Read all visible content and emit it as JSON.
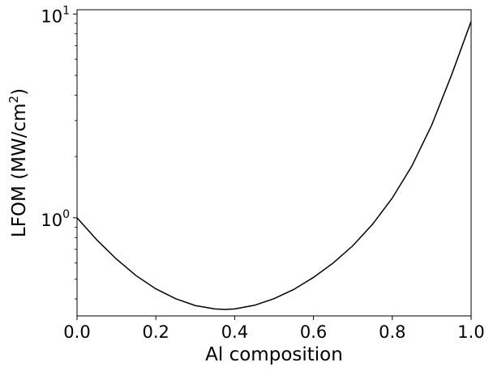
{
  "chart_data": {
    "type": "line",
    "title": "",
    "xlabel": "Al composition",
    "ylabel": {
      "main": "LFOM (MW/cm",
      "sup": "2",
      "close": ")"
    },
    "xlim": [
      0.0,
      1.0
    ],
    "ylim": [
      0.33,
      10.5
    ],
    "yscale": "log",
    "grid": false,
    "legend": "none",
    "line_color": "#000000",
    "x_ticks": [
      "0.0",
      "0.2",
      "0.4",
      "0.6",
      "0.8",
      "1.0"
    ],
    "x_tick_values": [
      0.0,
      0.2,
      0.4,
      0.6,
      0.8,
      1.0
    ],
    "y_ticks": [
      {
        "base": "10",
        "exp": "0",
        "value": 1
      },
      {
        "base": "10",
        "exp": "1",
        "value": 10
      }
    ],
    "series": [
      {
        "x": [
          0.0,
          0.05,
          0.1,
          0.15,
          0.2,
          0.25,
          0.3,
          0.35,
          0.375,
          0.4,
          0.45,
          0.5,
          0.55,
          0.6,
          0.65,
          0.7,
          0.75,
          0.8,
          0.85,
          0.9,
          0.95,
          1.0
        ],
        "y": [
          1.0,
          0.78,
          0.627,
          0.52,
          0.448,
          0.401,
          0.371,
          0.357,
          0.355,
          0.357,
          0.372,
          0.401,
          0.445,
          0.51,
          0.6,
          0.73,
          0.93,
          1.25,
          1.8,
          2.85,
          5.0,
          9.2
        ]
      }
    ]
  }
}
